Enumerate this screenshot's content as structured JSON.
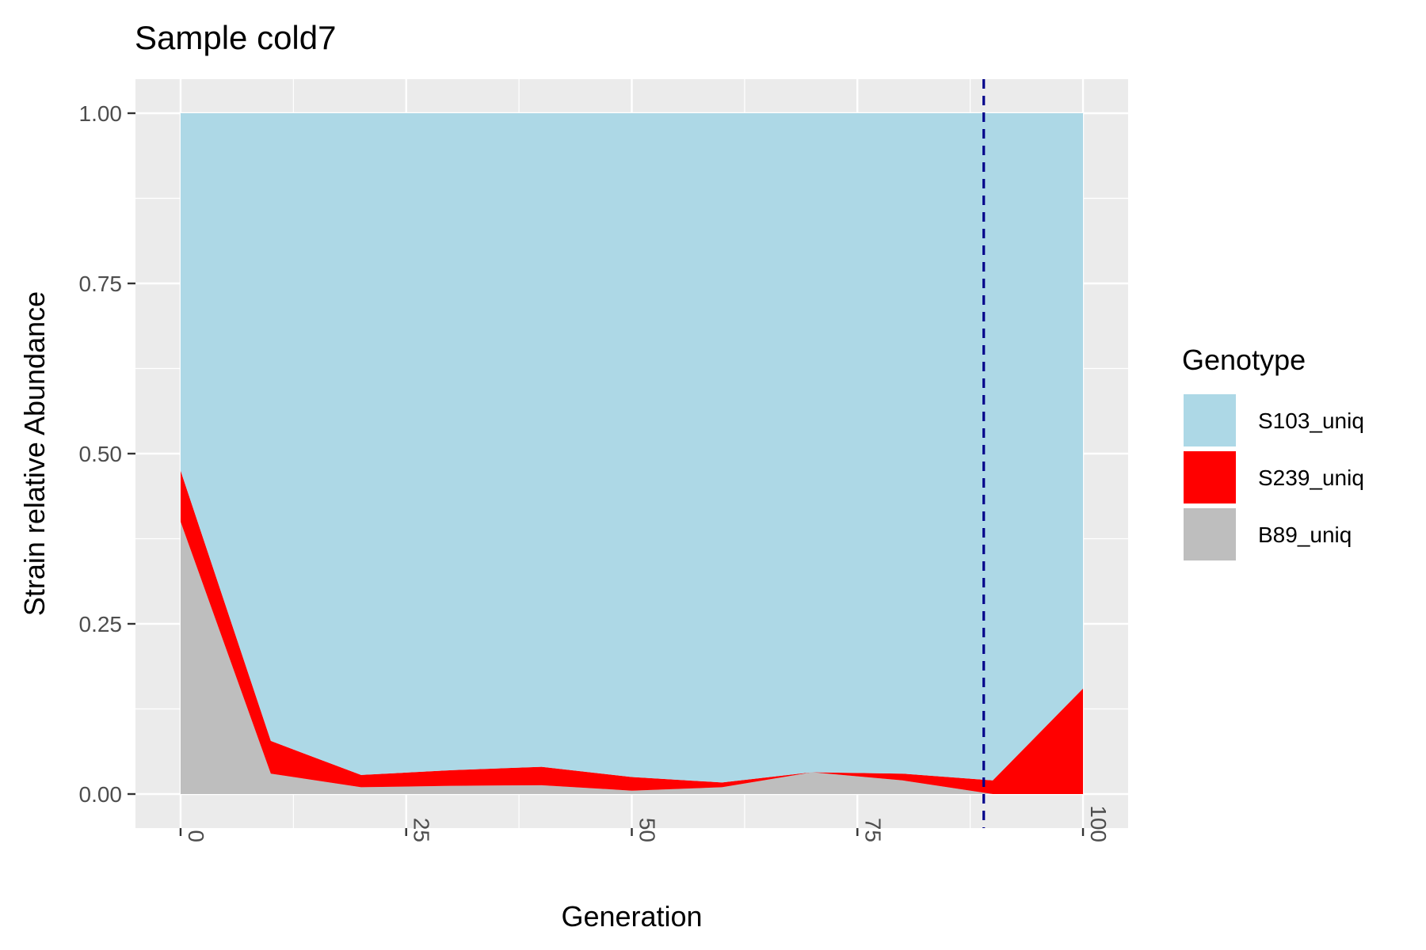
{
  "colors": {
    "panel": "#ebebeb",
    "grid": "#ffffff",
    "tick": "#333333",
    "vline": "#00008b",
    "S103_uniq": "#add8e6",
    "S239_uniq": "#ff0000",
    "B89_uniq": "#bebebe"
  },
  "chart_data": {
    "type": "area",
    "stacked": true,
    "title": "Sample cold7",
    "xlabel": "Generation",
    "ylabel": "Strain relative Abundance",
    "x": [
      0,
      10,
      20,
      30,
      40,
      50,
      60,
      70,
      80,
      90,
      100
    ],
    "xlim": [
      -5,
      105
    ],
    "ylim": [
      -0.05,
      1.05
    ],
    "x_ticks": [
      "0",
      "25",
      "50",
      "75",
      "100"
    ],
    "y_ticks": [
      "0.00",
      "0.25",
      "0.50",
      "0.75",
      "1.00"
    ],
    "x_tick_rotation": "90",
    "grid": true,
    "legend_position": "right",
    "legend_title": "Genotype",
    "series": [
      {
        "name": "B89_uniq",
        "color_key": "B89_uniq",
        "values": [
          0.4,
          0.03,
          0.01,
          0.012,
          0.013,
          0.005,
          0.01,
          0.032,
          0.02,
          0.0,
          0.0
        ]
      },
      {
        "name": "S239_uniq",
        "color_key": "S239_uniq",
        "values": [
          0.075,
          0.048,
          0.018,
          0.023,
          0.027,
          0.02,
          0.007,
          0.0,
          0.01,
          0.02,
          0.155
        ]
      },
      {
        "name": "S103_uniq",
        "color_key": "S103_uniq",
        "values": [
          0.525,
          0.922,
          0.972,
          0.965,
          0.96,
          0.975,
          0.983,
          0.968,
          0.97,
          0.98,
          0.845
        ]
      }
    ],
    "legend_order": [
      "S103_uniq",
      "S239_uniq",
      "B89_uniq"
    ],
    "vline": {
      "x": 89,
      "style": "dashed"
    }
  }
}
